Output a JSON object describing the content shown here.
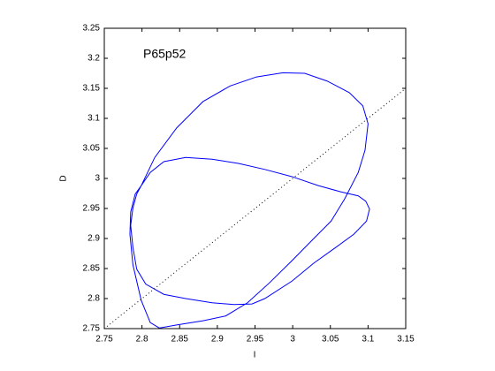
{
  "chart_data": {
    "type": "line",
    "annotation": "P65p52",
    "xlabel": "I",
    "ylabel": "D",
    "xlim": [
      2.75,
      3.15
    ],
    "ylim": [
      2.75,
      3.25
    ],
    "xticks": [
      2.75,
      2.8,
      2.85,
      2.9,
      2.95,
      3,
      3.05,
      3.1,
      3.15
    ],
    "yticks": [
      2.75,
      2.8,
      2.85,
      2.9,
      2.95,
      3,
      3.05,
      3.1,
      3.15,
      3.2,
      3.25
    ],
    "grid": false,
    "series": [
      {
        "color": "#0000ff",
        "linestyle": "solid",
        "x": [
          2.799,
          2.817,
          2.846,
          2.881,
          2.917,
          2.952,
          2.987,
          3.016,
          3.046,
          3.075,
          3.093,
          3.1,
          3.096,
          3.087,
          3.069,
          3.051,
          3.028,
          2.999,
          2.969,
          2.94,
          2.911,
          2.881,
          2.846,
          2.823,
          2.811,
          2.799,
          2.788,
          2.784,
          2.785,
          2.791,
          2.799,
          2.811,
          2.829,
          2.858,
          2.893,
          2.928,
          2.963,
          2.999,
          3.034,
          3.063,
          3.087,
          3.097,
          3.102,
          3.098,
          3.081,
          3.057,
          3.028,
          2.999,
          2.963,
          2.946,
          2.922,
          2.893,
          2.858,
          2.829,
          2.805,
          2.793,
          2.788,
          2.785,
          2.788,
          2.793,
          2.799
        ],
        "values": [
          2.988,
          3.035,
          3.084,
          3.128,
          3.154,
          3.169,
          3.176,
          3.175,
          3.162,
          3.143,
          3.121,
          3.091,
          3.047,
          3.01,
          2.966,
          2.929,
          2.9,
          2.863,
          2.826,
          2.793,
          2.771,
          2.763,
          2.756,
          2.751,
          2.76,
          2.797,
          2.856,
          2.907,
          2.944,
          2.974,
          2.988,
          3.01,
          3.028,
          3.035,
          3.032,
          3.025,
          3.015,
          3.003,
          2.988,
          2.978,
          2.971,
          2.962,
          2.949,
          2.929,
          2.907,
          2.885,
          2.859,
          2.829,
          2.8,
          2.791,
          2.79,
          2.793,
          2.8,
          2.807,
          2.824,
          2.849,
          2.885,
          2.922,
          2.951,
          2.974,
          2.988
        ]
      },
      {
        "color": "#000000",
        "linestyle": "dotted",
        "x": [
          2.75,
          3.15
        ],
        "values": [
          2.75,
          3.15
        ]
      }
    ]
  }
}
